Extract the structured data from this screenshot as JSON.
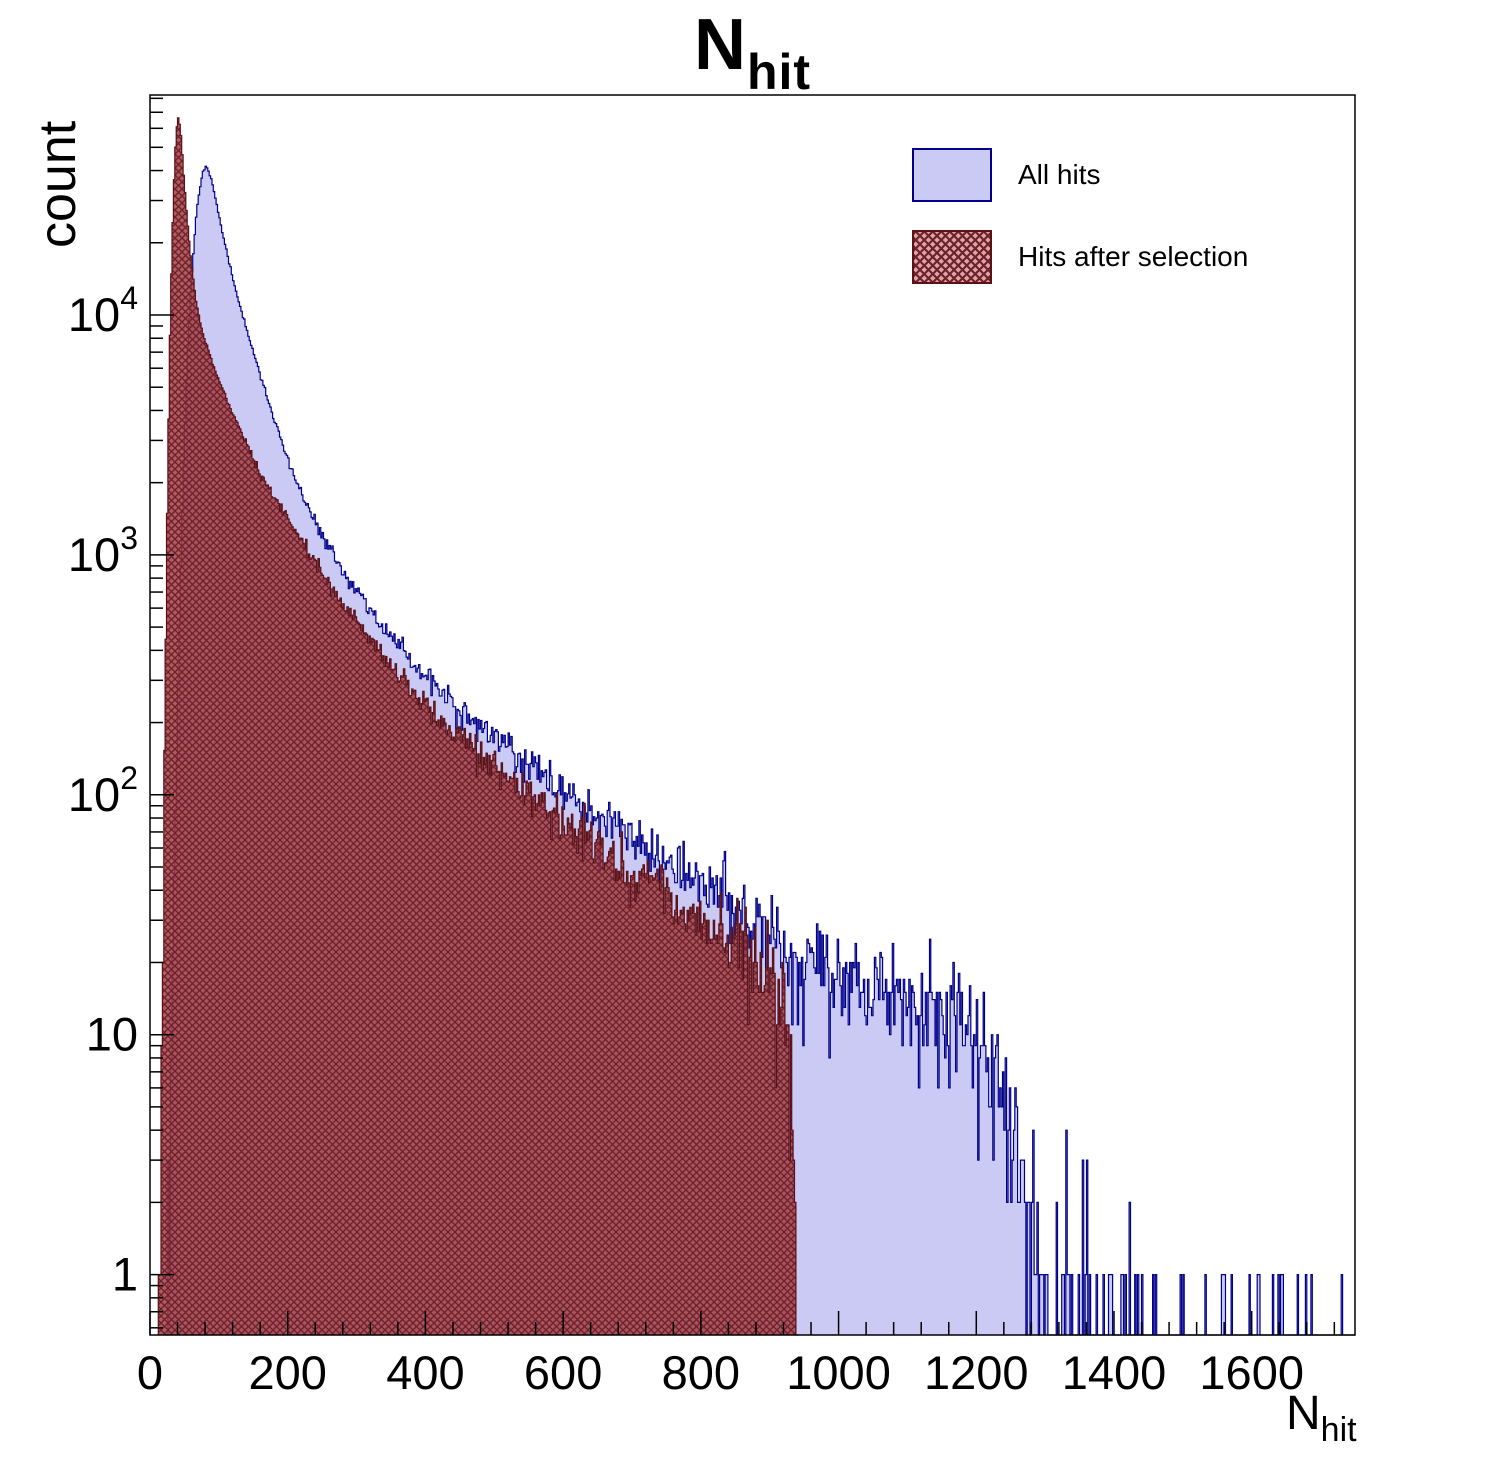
{
  "title": {
    "main": "N",
    "sub": "hit"
  },
  "chart_data": {
    "type": "histogram",
    "title_main": "N",
    "title_sub": "hit",
    "x_axis": {
      "label_main": "N",
      "label_sub": "hit",
      "min": 0,
      "max": 1750,
      "major_ticks": [
        0,
        200,
        400,
        600,
        800,
        1000,
        1200,
        1400,
        1600
      ],
      "minor_step": 40
    },
    "y_axis": {
      "label": "count",
      "scale": "log",
      "min": 0.56,
      "max": 82600,
      "major_ticks": [
        1,
        10,
        100,
        1000,
        10000
      ]
    },
    "bin_width": 2,
    "series": [
      {
        "name": "All hits",
        "outline_color": "#00008b",
        "fill_color": "#cacaf5",
        "peak": {
          "x": 80,
          "count": 42000
        },
        "envelope": [
          [
            24,
            0.5
          ],
          [
            30,
            5
          ],
          [
            36,
            60
          ],
          [
            42,
            400
          ],
          [
            48,
            2000
          ],
          [
            54,
            6500
          ],
          [
            60,
            14000
          ],
          [
            68,
            28000
          ],
          [
            76,
            39000
          ],
          [
            82,
            42000
          ],
          [
            90,
            36000
          ],
          [
            100,
            26000
          ],
          [
            112,
            18000
          ],
          [
            125,
            12500
          ],
          [
            140,
            8800
          ],
          [
            160,
            5600
          ],
          [
            180,
            3700
          ],
          [
            200,
            2500
          ],
          [
            220,
            1800
          ],
          [
            240,
            1380
          ],
          [
            260,
            1080
          ],
          [
            280,
            860
          ],
          [
            300,
            700
          ],
          [
            330,
            530
          ],
          [
            360,
            420
          ],
          [
            400,
            310
          ],
          [
            440,
            240
          ],
          [
            480,
            192
          ],
          [
            520,
            156
          ],
          [
            560,
            127
          ],
          [
            600,
            104
          ],
          [
            650,
            81
          ],
          [
            700,
            64
          ],
          [
            750,
            52
          ],
          [
            800,
            42
          ],
          [
            850,
            34
          ],
          [
            900,
            28
          ],
          [
            930,
            24
          ],
          [
            960,
            20
          ],
          [
            1000,
            17
          ],
          [
            1050,
            15.5
          ],
          [
            1100,
            14.5
          ],
          [
            1150,
            13.5
          ],
          [
            1190,
            12.5
          ],
          [
            1215,
            9
          ],
          [
            1235,
            5
          ],
          [
            1255,
            3
          ],
          [
            1275,
            1.8
          ],
          [
            1300,
            0.9
          ],
          [
            1340,
            0.4
          ],
          [
            1420,
            0.18
          ],
          [
            1560,
            0.12
          ],
          [
            1750,
            0.08
          ]
        ]
      },
      {
        "name": "Hits after selection",
        "outline_color": "#5a1118",
        "fill_base": "rgba(163,62,70,0.85)",
        "hatch_color": "#6e2128",
        "legend_bg": "#d9a3a8",
        "peak": {
          "x": 40,
          "count": 68000
        },
        "cutoff_x": 940,
        "envelope": [
          [
            12,
            0.4
          ],
          [
            16,
            3
          ],
          [
            20,
            60
          ],
          [
            24,
            900
          ],
          [
            28,
            6000
          ],
          [
            32,
            20000
          ],
          [
            36,
            45000
          ],
          [
            40,
            68000
          ],
          [
            44,
            61000
          ],
          [
            48,
            42000
          ],
          [
            54,
            25000
          ],
          [
            60,
            16500
          ],
          [
            68,
            11000
          ],
          [
            76,
            8600
          ],
          [
            84,
            7200
          ],
          [
            92,
            6100
          ],
          [
            100,
            5400
          ],
          [
            112,
            4400
          ],
          [
            125,
            3600
          ],
          [
            140,
            2900
          ],
          [
            160,
            2200
          ],
          [
            180,
            1750
          ],
          [
            200,
            1450
          ],
          [
            220,
            1150
          ],
          [
            240,
            930
          ],
          [
            260,
            760
          ],
          [
            280,
            630
          ],
          [
            300,
            520
          ],
          [
            330,
            400
          ],
          [
            360,
            320
          ],
          [
            400,
            235
          ],
          [
            440,
            182
          ],
          [
            480,
            146
          ],
          [
            520,
            118
          ],
          [
            560,
            95
          ],
          [
            600,
            78
          ],
          [
            650,
            60
          ],
          [
            700,
            47
          ],
          [
            750,
            38
          ],
          [
            800,
            30
          ],
          [
            850,
            24
          ],
          [
            880,
            20
          ],
          [
            900,
            17
          ],
          [
            915,
            14
          ],
          [
            925,
            11
          ],
          [
            932,
            6
          ],
          [
            937,
            2
          ],
          [
            941,
            0.5
          ]
        ]
      }
    ]
  }
}
